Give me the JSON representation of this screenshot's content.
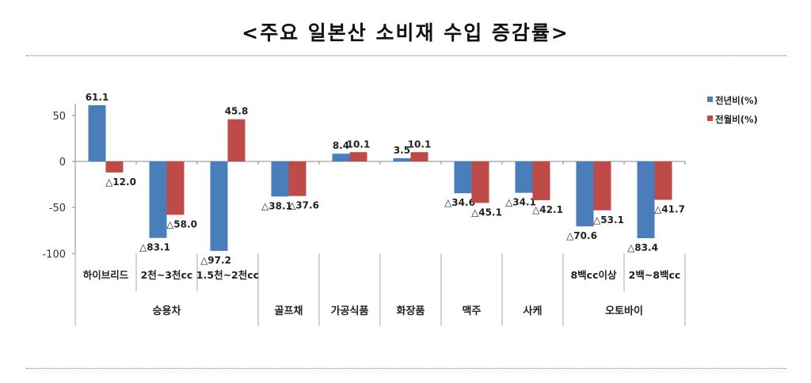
{
  "chart_data": {
    "type": "bar",
    "title": "<주요 일본산 소비재 수입 증감률>",
    "xlabel": "",
    "ylabel": "",
    "ylim": [
      -100,
      50
    ],
    "yticks": [
      50,
      0,
      -50,
      -100
    ],
    "ytick_labels": [
      "50",
      "0",
      "-50",
      "-100"
    ],
    "legend_placement": "top-right",
    "categories": [
      "하이브리드",
      "2천~3천cc",
      "1.5천~2천cc",
      "",
      "",
      "",
      "",
      "",
      "8백cc이상",
      "2백~8백cc"
    ],
    "groups": [
      {
        "label": "승용차",
        "span": 3
      },
      {
        "label": "골프채",
        "span": 1
      },
      {
        "label": "가공식품",
        "span": 1
      },
      {
        "label": "화장품",
        "span": 1
      },
      {
        "label": "맥주",
        "span": 1
      },
      {
        "label": "사케",
        "span": 1
      },
      {
        "label": "오토바이",
        "span": 2
      }
    ],
    "series": [
      {
        "name": "전년비(%)",
        "color": "#4a7ebb",
        "values": [
          61.1,
          -83.1,
          -97.2,
          -38.1,
          8.4,
          3.5,
          -34.6,
          -34.1,
          -70.6,
          -83.4
        ],
        "labels": [
          "61.1",
          "△83.1",
          "△97.2",
          "△38.1",
          "8.4",
          "3.5",
          "△34.6",
          "△34.1",
          "△70.6",
          "△83.4"
        ]
      },
      {
        "name": "전월비(%)",
        "color": "#be4b48",
        "values": [
          -12.0,
          -58.0,
          45.8,
          -37.6,
          10.1,
          10.1,
          -45.1,
          -42.1,
          -53.1,
          -41.7
        ],
        "labels": [
          "△12.0",
          "△58.0",
          "45.8",
          "△37.6",
          "10.1",
          "10.1",
          "△45.1",
          "△42.1",
          "△53.1",
          "△41.7"
        ]
      }
    ]
  }
}
